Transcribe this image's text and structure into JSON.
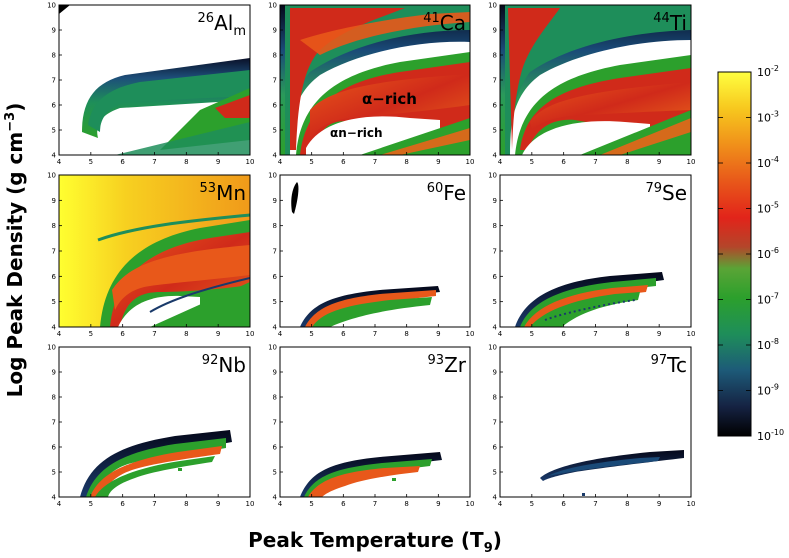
{
  "chart_data": {
    "type": "heatmap",
    "grid": [
      3,
      3
    ],
    "x_axis": {
      "label_prefix": "Peak Temperature (T",
      "label_sub": "9",
      "label_suffix": ")",
      "range": [
        4,
        10
      ],
      "ticks": [
        4,
        5,
        6,
        7,
        8,
        9,
        10
      ]
    },
    "y_axis": {
      "label_prefix": "Log Peak Density (g cm",
      "label_sup": "−3",
      "label_suffix": ")",
      "range": [
        4,
        10
      ],
      "ticks": [
        4,
        5,
        6,
        7,
        8,
        9,
        10
      ]
    },
    "colorbar": {
      "scale": "log",
      "range": [
        1e-10,
        0.01
      ],
      "tick_base": "10",
      "tick_exponents": [
        "-2",
        "-3",
        "-4",
        "-5",
        "-6",
        "-7",
        "-8",
        "-9",
        "-10"
      ],
      "colors": [
        "#000000",
        "#14203c",
        "#1d5a78",
        "#1e8e5a",
        "#2ca02c",
        "#6aa83a",
        "#c83a24",
        "#e2241a",
        "#e8581a",
        "#f0901a",
        "#f7c81e",
        "#ffff40"
      ]
    },
    "panels": [
      {
        "mass": "26",
        "element": "Al",
        "sub": "m",
        "title_color": "#000000"
      },
      {
        "mass": "41",
        "element": "Ca",
        "sub": "",
        "title_color": "#ffffff"
      },
      {
        "mass": "44",
        "element": "Ti",
        "sub": "",
        "title_color": "#ffffff"
      },
      {
        "mass": "53",
        "element": "Mn",
        "sub": "",
        "title_color": "#000000"
      },
      {
        "mass": "60",
        "element": "Fe",
        "sub": "",
        "title_color": "#000000"
      },
      {
        "mass": "79",
        "element": "Se",
        "sub": "",
        "title_color": "#000000"
      },
      {
        "mass": "92",
        "element": "Nb",
        "sub": "",
        "title_color": "#000000"
      },
      {
        "mass": "93",
        "element": "Zr",
        "sub": "",
        "title_color": "#000000"
      },
      {
        "mass": "97",
        "element": "Tc",
        "sub": "",
        "title_color": "#000000"
      }
    ],
    "annotations": [
      {
        "panel": 1,
        "text": "α−rich"
      },
      {
        "panel": 1,
        "text": "αn−rich"
      }
    ]
  }
}
